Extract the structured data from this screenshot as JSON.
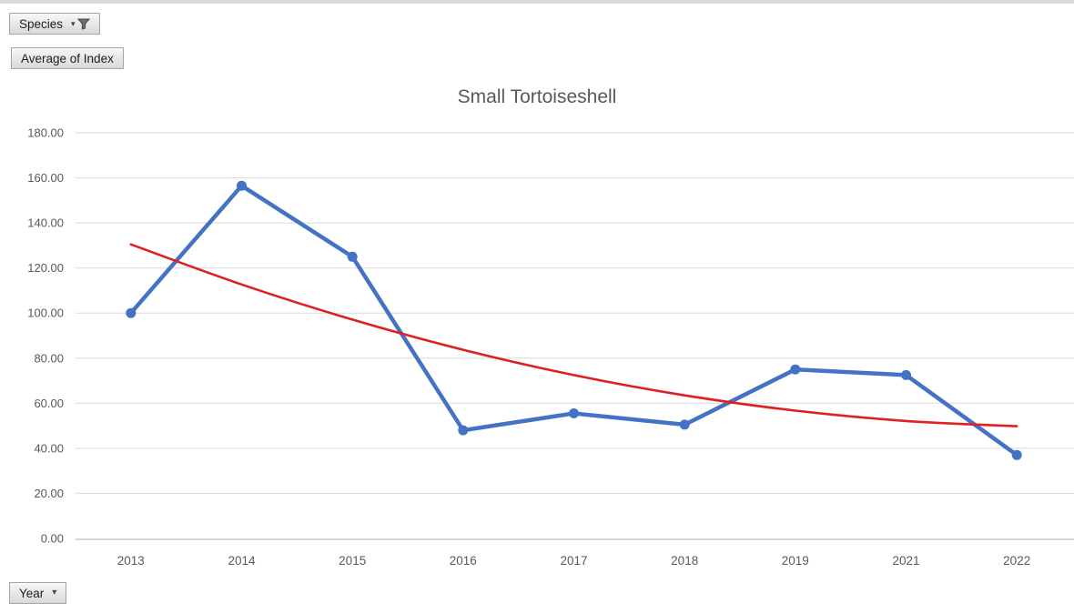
{
  "window": {
    "top_strip_color": "#d9d9d9"
  },
  "pivot_buttons": {
    "species": {
      "label": "Species"
    },
    "value_field": {
      "label": "Average of Index"
    },
    "axis_field": {
      "label": "Year"
    }
  },
  "chart_data": {
    "type": "line",
    "title": "Small Tortoiseshell",
    "categories": [
      "2013",
      "2014",
      "2015",
      "2016",
      "2017",
      "2018",
      "2019",
      "2021",
      "2022"
    ],
    "series": [
      {
        "name": "Average of Index",
        "style": "line-with-markers",
        "color": "#4472C4",
        "values": [
          100.0,
          156.5,
          125.0,
          48.0,
          55.5,
          50.5,
          75.0,
          72.5,
          37.0
        ]
      },
      {
        "name": "Trendline",
        "style": "smooth-trendline",
        "color": "#E02020",
        "values": [
          130.5,
          112.7,
          97.1,
          83.7,
          72.5,
          63.5,
          56.7,
          52.1,
          49.8
        ]
      }
    ],
    "xlabel": "",
    "ylabel": "",
    "ylim": [
      0,
      180
    ],
    "ytick_step": 20,
    "ytick_labels": [
      "180.00",
      "160.00",
      "140.00",
      "120.00",
      "100.00",
      "80.00",
      "60.00",
      "40.00",
      "20.00",
      "0.00"
    ],
    "grid": true,
    "legend": "none",
    "axis_text_color": "#595959",
    "gridline_color": "#d9d9d9",
    "axis_line_color": "#bfbfbf"
  }
}
